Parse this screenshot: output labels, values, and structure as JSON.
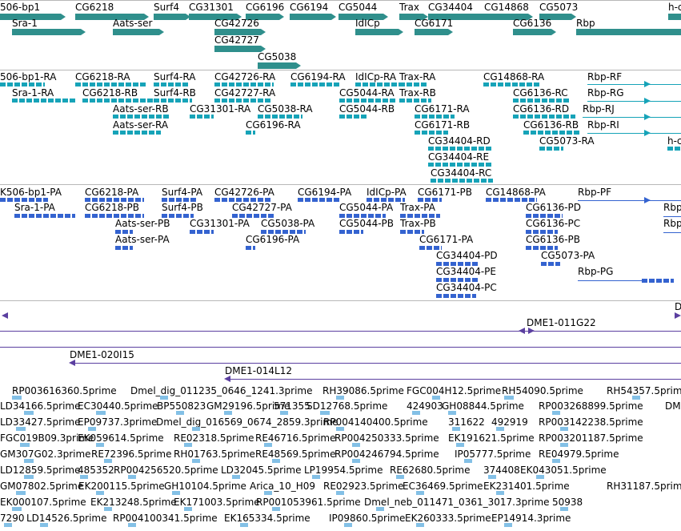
{
  "genes": {
    "labels": [
      "506-bp1",
      "CG6218",
      "Surf4",
      "CG31301",
      "CG6196",
      "CG6194",
      "CG5044",
      "Trax",
      "CG34404",
      "CG14868",
      "CG5073",
      "h-c",
      "Sra-1",
      "Aats-ser",
      "CG42726",
      "IdICp",
      "CG6171",
      "CG6136",
      "Rbp",
      "CG42727",
      "CG5038"
    ]
  },
  "transcripts": {
    "labels": [
      "506-bp1-RA",
      "CG6218-RA",
      "Surf4-RA",
      "CG42726-RA",
      "CG6194-RA",
      "IdICp-RA",
      "Trax-RA",
      "CG14868-RA",
      "Rbp-RF",
      "Sra-1-RA",
      "CG6218-RB",
      "Surf4-RB",
      "CG42727-RA",
      "CG5044-RA",
      "Trax-RB",
      "CG6136-RC",
      "Rbp-RG",
      "Aats-ser-RB",
      "CG31301-RA",
      "CG5038-RA",
      "CG5044-RB",
      "CG6171-RA",
      "CG6136-RD",
      "Rbp-RJ",
      "Aats-ser-RA",
      "CG6196-RA",
      "CG6171-RB",
      "CG6136-RB",
      "Rbp-RI",
      "CG34404-RD",
      "CG5073-RA",
      "h-c",
      "CG34404-RE",
      "CG34404-RC"
    ]
  },
  "proteins": {
    "labels": [
      "K506-bp1-PA",
      "CG6218-PA",
      "Surf4-PA",
      "CG42726-PA",
      "CG6194-PA",
      "IdICp-PA",
      "CG6171-PB",
      "CG14868-PA",
      "Rbp-PF",
      "Sra-1-PA",
      "CG6218-PB",
      "Surf4-PB",
      "CG42727-PA",
      "CG5044-PA",
      "Trax-PA",
      "CG6136-PD",
      "Rbp",
      "Aats-ser-PB",
      "CG31301-PA",
      "CG5038-PA",
      "CG5044-PB",
      "Trax-PB",
      "CG6136-PC",
      "Rbp",
      "Aats-ser-PA",
      "CG6196-PA",
      "CG6171-PA",
      "CG6136-PB",
      "CG34404-PD",
      "CG5073-PA",
      "CG34404-PE",
      "Rbp-PG",
      "CG34404-PC"
    ]
  },
  "clones": {
    "labels": [
      "D",
      "DME1-011G22",
      "DME1-020I15",
      "DME1-014L12"
    ]
  },
  "ests": {
    "rows": [
      [
        "RP003616360.5prime",
        "Dmel_dig_011235_0646_1241.3prime",
        "RH39086.5prime",
        "FGC004H12.5prime",
        "RH54090.5prime",
        "RH54357.5prime"
      ],
      [
        "LD34166.5prime",
        "EC30440.5prime",
        "BP550823",
        "GM29196.5prime",
        "571355",
        "SD12768.5prime",
        "424903",
        "GH08844.5prime",
        "RP003268899.5prime",
        "DM"
      ],
      [
        "LD33427.5prime",
        "EP09737.3prime",
        "Dmel_dig_016569_0674_2859.3prime",
        "RP004140400.5prime",
        "311622",
        "492919",
        "RP003142238.5prime"
      ],
      [
        "FGC019B09.3prime",
        "EK059614.5prime",
        "RE02318.5prime",
        "RE46716.5prime",
        "RP004250333.5prime",
        "EK191621.5prime",
        "RP003201187.5prime"
      ],
      [
        "GM307G02.3prime",
        "RE72396.5prime",
        "RH01763.5prime",
        "RE48569.5prime",
        "RP004246794.5prime",
        "IP05777.5prime",
        "RE04979.5prime"
      ],
      [
        "LD12859.5prime",
        "485352",
        "RP004256520.5prime",
        "LD32045.5prime",
        "LP19954.5prime",
        "RE62680.5prime",
        "374408",
        "EK043051.5prime"
      ],
      [
        "GM07802.5prime",
        "EK200115.5prime",
        "GH10104.5prime",
        "Arica_10_H09",
        "RE02923.5prime",
        "EC36469.5prime",
        "EK231401.5prime",
        "RH31187.5prim"
      ],
      [
        "EK000107.5prime",
        "EK213248.5prime",
        "EK171003.5prime",
        "RP001053961.5prime",
        "Dmel_neb_011471_0361_3017.3prime",
        "50938"
      ],
      [
        "7290",
        "LD14526.5prime",
        "RP004100341.5prime",
        "EK165334.5prime",
        "IP09860.5prime",
        "EK260333.5prime",
        "EP14914.3prime"
      ]
    ]
  },
  "colors": {
    "gene": "#2f8f8c",
    "transcript": "#16a3b8",
    "protein": "#3463d0",
    "clone": "#5b3fa0",
    "est": "#83c0e6",
    "separator": "#b8b8b8"
  }
}
